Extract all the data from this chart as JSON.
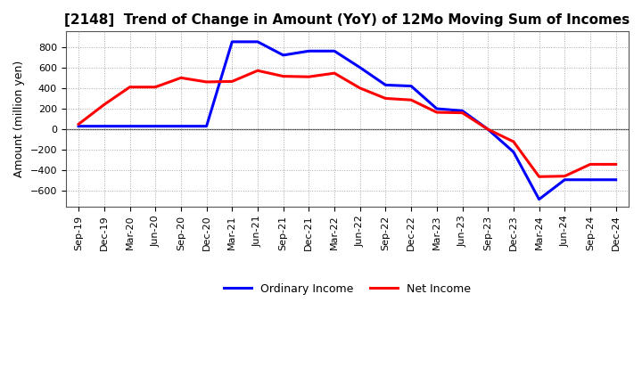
{
  "title": "[2148]  Trend of Change in Amount (YoY) of 12Mo Moving Sum of Incomes",
  "ylabel": "Amount (million yen)",
  "background_color": "#ffffff",
  "grid_color": "#aaaaaa",
  "x_labels": [
    "Sep-19",
    "Dec-19",
    "Mar-20",
    "Jun-20",
    "Sep-20",
    "Dec-20",
    "Mar-21",
    "Jun-21",
    "Sep-21",
    "Dec-21",
    "Mar-22",
    "Jun-22",
    "Sep-22",
    "Dec-22",
    "Mar-23",
    "Jun-23",
    "Sep-23",
    "Dec-23",
    "Mar-24",
    "Jun-24",
    "Sep-24",
    "Dec-24"
  ],
  "ordinary_income": [
    30,
    30,
    30,
    30,
    30,
    30,
    850,
    850,
    720,
    760,
    760,
    600,
    430,
    420,
    200,
    180,
    0,
    -220,
    -680,
    -490,
    -490,
    -490
  ],
  "net_income": [
    50,
    240,
    410,
    410,
    500,
    460,
    465,
    570,
    515,
    510,
    545,
    400,
    300,
    285,
    165,
    160,
    0,
    -120,
    -460,
    -455,
    -340,
    -340
  ],
  "ordinary_color": "#0000ff",
  "net_color": "#ff0000",
  "ylim": [
    -750,
    950
  ],
  "yticks": [
    -600,
    -400,
    -200,
    0,
    200,
    400,
    600,
    800
  ],
  "line_width": 2.2,
  "title_fontsize": 11,
  "tick_fontsize": 8,
  "ylabel_fontsize": 9,
  "legend_fontsize": 9
}
